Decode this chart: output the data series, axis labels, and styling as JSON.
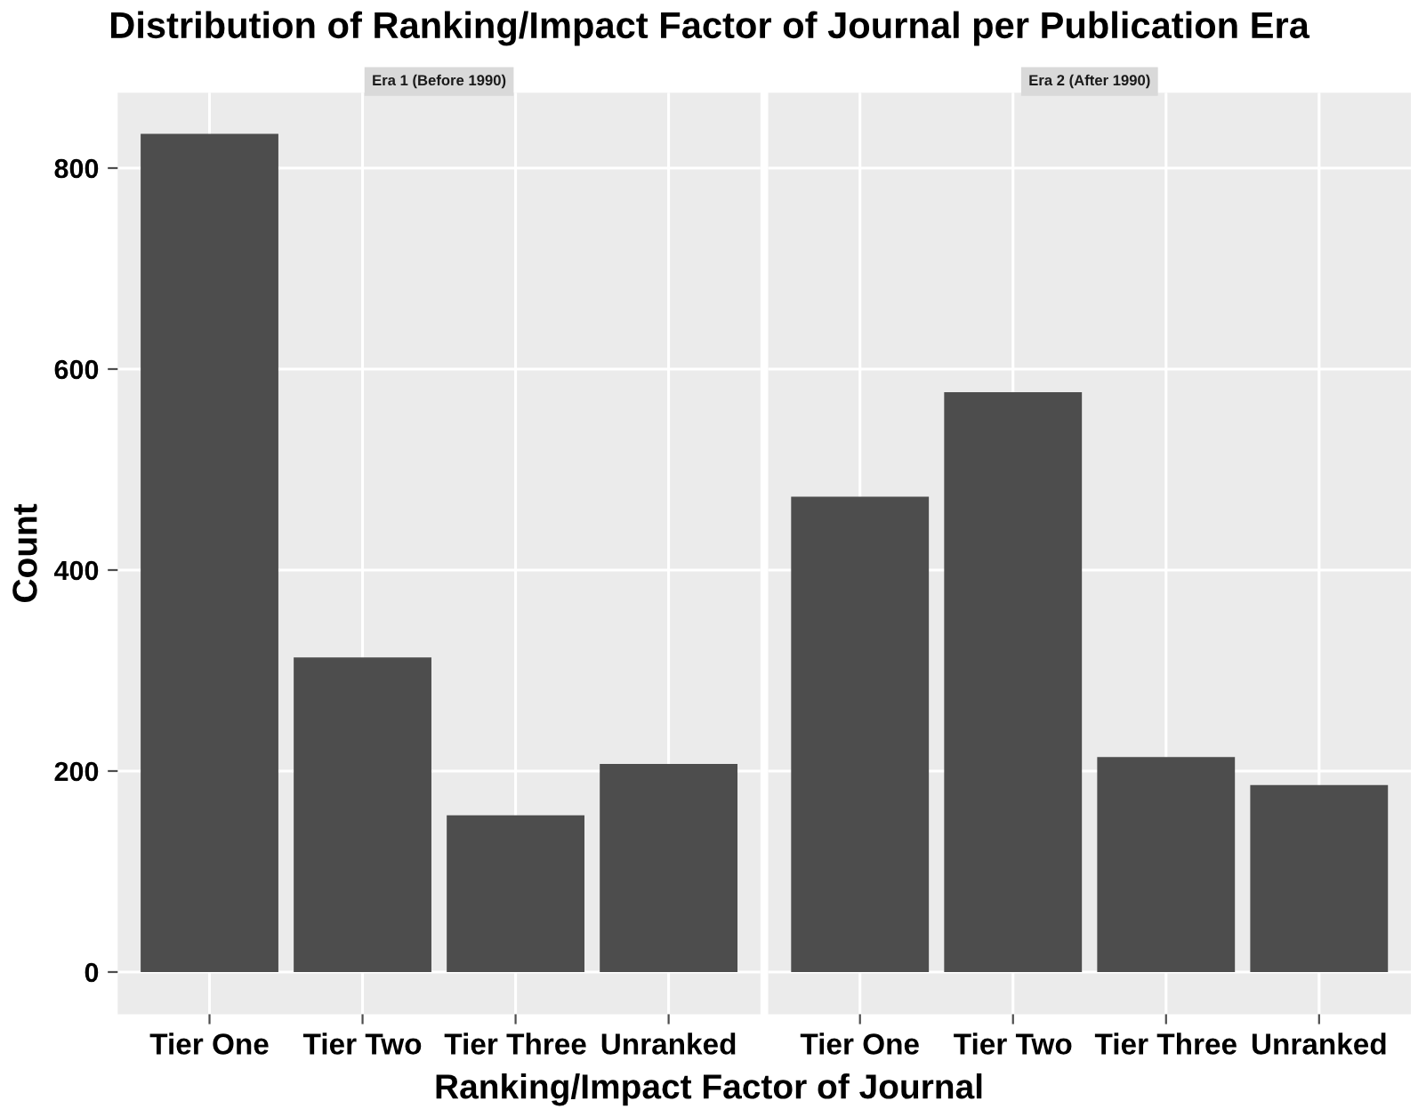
{
  "chart_data": [
    {
      "type": "bar",
      "title": "Distribution of Ranking/Impact Factor of Journal per Publication Era",
      "subtitle": "Era 1 (Before 1990)",
      "xlabel": "Ranking/Impact Factor of Journal",
      "ylabel": "Count",
      "categories": [
        "Tier One",
        "Tier Two",
        "Tier Three",
        "Unranked"
      ],
      "values": [
        834,
        313,
        156,
        207
      ],
      "color": "#4d4d4d",
      "ylim": [
        -42,
        875
      ],
      "yticks": [
        0,
        200,
        400,
        600,
        800
      ],
      "grid": true
    },
    {
      "type": "bar",
      "subtitle": "Era 2 (After 1990)",
      "categories": [
        "Tier One",
        "Tier Two",
        "Tier Three",
        "Unranked"
      ],
      "values": [
        473,
        577,
        214,
        186
      ],
      "color": "#4d4d4d",
      "ylim": [
        -42,
        875
      ],
      "yticks": [
        0,
        200,
        400,
        600,
        800
      ],
      "grid": true,
      "tick_labels": "x"
    }
  ]
}
